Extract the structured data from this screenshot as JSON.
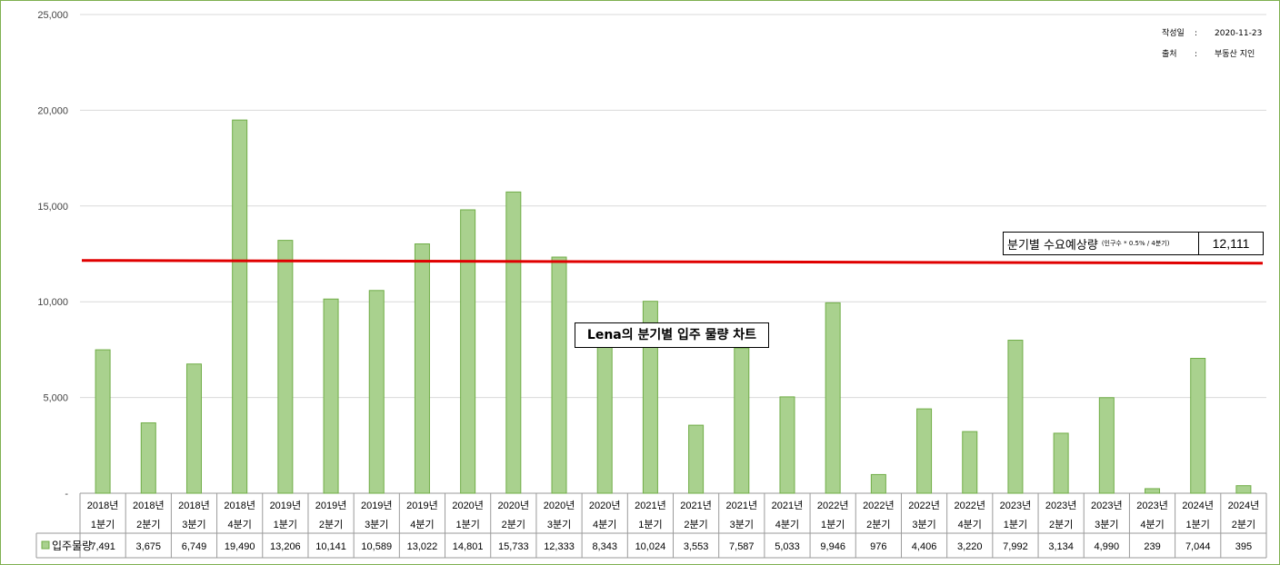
{
  "meta": {
    "date_label": "작성일",
    "date_value": "2020-11-23",
    "source_label": "출처",
    "source_value": "부동산 지인",
    "separator": ":"
  },
  "annotations": {
    "demand_label": "분기별 수요예상량",
    "demand_note": "(인구수 * 0.5% / 4분기)",
    "demand_value": "12,111",
    "chart_title": "Lena의 분기별 입주 물량 차트"
  },
  "colors": {
    "bar_fill": "#a9d18e",
    "bar_stroke": "#70ad47",
    "reference_line": "#e00000",
    "frame": "#7fb050"
  },
  "chart_data": {
    "type": "bar",
    "y_ticks": [
      "-",
      "5,000",
      "10,000",
      "15,000",
      "20,000",
      "25,000"
    ],
    "ylim": [
      0,
      25000
    ],
    "grid": true,
    "categories": [
      [
        "2018년",
        "1분기"
      ],
      [
        "2018년",
        "2분기"
      ],
      [
        "2018년",
        "3분기"
      ],
      [
        "2018년",
        "4분기"
      ],
      [
        "2019년",
        "1분기"
      ],
      [
        "2019년",
        "2분기"
      ],
      [
        "2019년",
        "3분기"
      ],
      [
        "2019년",
        "4분기"
      ],
      [
        "2020년",
        "1분기"
      ],
      [
        "2020년",
        "2분기"
      ],
      [
        "2020년",
        "3분기"
      ],
      [
        "2020년",
        "4분기"
      ],
      [
        "2021년",
        "1분기"
      ],
      [
        "2021년",
        "2분기"
      ],
      [
        "2021년",
        "3분기"
      ],
      [
        "2021년",
        "4분기"
      ],
      [
        "2022년",
        "1분기"
      ],
      [
        "2022년",
        "2분기"
      ],
      [
        "2022년",
        "3분기"
      ],
      [
        "2022년",
        "4분기"
      ],
      [
        "2023년",
        "1분기"
      ],
      [
        "2023년",
        "2분기"
      ],
      [
        "2023년",
        "3분기"
      ],
      [
        "2023년",
        "4분기"
      ],
      [
        "2024년",
        "1분기"
      ],
      [
        "2024년",
        "2분기"
      ]
    ],
    "series": [
      {
        "name": "입주물량",
        "values": [
          7491,
          3675,
          6749,
          19490,
          13206,
          10141,
          10589,
          13022,
          14801,
          15733,
          12333,
          8343,
          10024,
          3553,
          7587,
          5033,
          9946,
          976,
          4406,
          3220,
          7992,
          3134,
          4990,
          239,
          7044,
          395
        ],
        "labels": [
          "7,491",
          "3,675",
          "6,749",
          "19,490",
          "13,206",
          "10,141",
          "10,589",
          "13,022",
          "14,801",
          "15,733",
          "12,333",
          "8,343",
          "10,024",
          "3,553",
          "7,587",
          "5,033",
          "9,946",
          "976",
          "4,406",
          "3,220",
          "7,992",
          "3,134",
          "4,990",
          "239",
          "7,044",
          "395"
        ]
      }
    ],
    "reference_line": {
      "value": 12111
    }
  }
}
